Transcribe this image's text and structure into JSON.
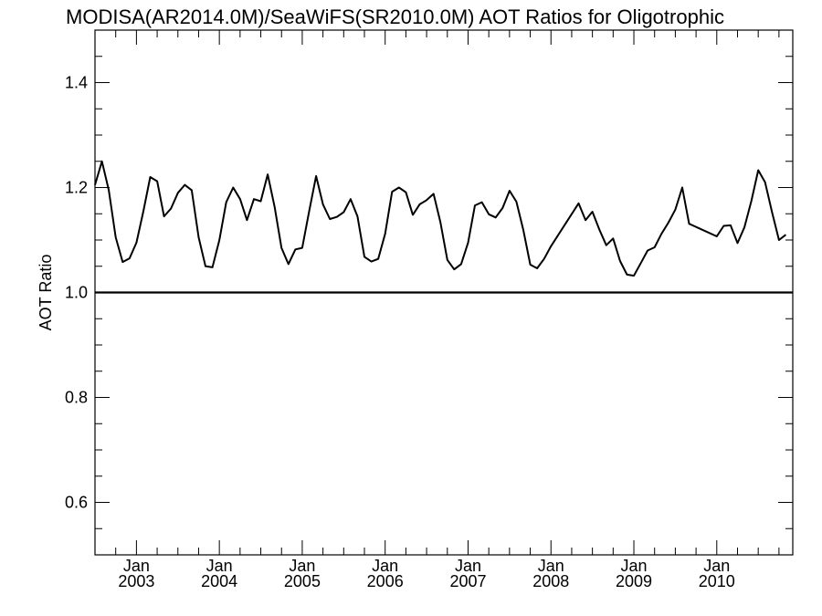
{
  "chart_data": {
    "type": "line",
    "title": "MODISA(AR2014.0M)/SeaWiFS(SR2010.0M)  AOT Ratios for Oligotrophic",
    "xlabel": "",
    "ylabel": "AOT Ratio",
    "ylim": [
      0.5,
      1.5
    ],
    "xlim": [
      "2002-07-01",
      "2010-12-01"
    ],
    "y_ticks": [
      {
        "value": 0.6,
        "label": "0.6"
      },
      {
        "value": 0.8,
        "label": "0.8"
      },
      {
        "value": 1.0,
        "label": "1.0"
      },
      {
        "value": 1.2,
        "label": "1.2"
      },
      {
        "value": 1.4,
        "label": "1.4"
      }
    ],
    "x_ticks": [
      {
        "date": "2003-01-01",
        "month": "Jan",
        "year": "2003"
      },
      {
        "date": "2004-01-01",
        "month": "Jan",
        "year": "2004"
      },
      {
        "date": "2005-01-01",
        "month": "Jan",
        "year": "2005"
      },
      {
        "date": "2006-01-01",
        "month": "Jan",
        "year": "2006"
      },
      {
        "date": "2007-01-01",
        "month": "Jan",
        "year": "2007"
      },
      {
        "date": "2008-01-01",
        "month": "Jan",
        "year": "2008"
      },
      {
        "date": "2009-01-01",
        "month": "Jan",
        "year": "2009"
      },
      {
        "date": "2010-01-01",
        "month": "Jan",
        "year": "2010"
      }
    ],
    "reference_line": {
      "y": 1.0
    },
    "grid": false,
    "series": [
      {
        "x": [
          "2002-07",
          "2002-08",
          "2002-09",
          "2002-10",
          "2002-11",
          "2002-12",
          "2003-01",
          "2003-02",
          "2003-03",
          "2003-04",
          "2003-05",
          "2003-06",
          "2003-07",
          "2003-08",
          "2003-09",
          "2003-10",
          "2003-11",
          "2003-12",
          "2004-01",
          "2004-02",
          "2004-03",
          "2004-04",
          "2004-05",
          "2004-06",
          "2004-07",
          "2004-08",
          "2004-09",
          "2004-10",
          "2004-11",
          "2004-12",
          "2005-01",
          "2005-02",
          "2005-03",
          "2005-04",
          "2005-05",
          "2005-06",
          "2005-07",
          "2005-08",
          "2005-09",
          "2005-10",
          "2005-11",
          "2005-12",
          "2006-01",
          "2006-02",
          "2006-03",
          "2006-04",
          "2006-05",
          "2006-06",
          "2006-07",
          "2006-08",
          "2006-09",
          "2006-10",
          "2006-11",
          "2006-12",
          "2007-01",
          "2007-02",
          "2007-03",
          "2007-04",
          "2007-05",
          "2007-06",
          "2007-07",
          "2007-08",
          "2007-09",
          "2007-10",
          "2007-11",
          "2007-12",
          "2008-01",
          "2008-05",
          "2008-06",
          "2008-07",
          "2008-08",
          "2008-09",
          "2008-10",
          "2008-11",
          "2008-12",
          "2009-01",
          "2009-02",
          "2009-03",
          "2009-04",
          "2009-05",
          "2009-06",
          "2009-07",
          "2009-08",
          "2009-09",
          "2010-01",
          "2010-02",
          "2010-03",
          "2010-04",
          "2010-05",
          "2010-06",
          "2010-07",
          "2010-08",
          "2010-09",
          "2010-10",
          "2010-11"
        ],
        "values": [
          1.205,
          1.25,
          1.195,
          1.105,
          1.058,
          1.065,
          1.095,
          1.155,
          1.22,
          1.212,
          1.145,
          1.16,
          1.19,
          1.205,
          1.195,
          1.105,
          1.05,
          1.048,
          1.1,
          1.172,
          1.2,
          1.178,
          1.138,
          1.178,
          1.174,
          1.225,
          1.163,
          1.085,
          1.054,
          1.082,
          1.085,
          1.155,
          1.222,
          1.168,
          1.14,
          1.144,
          1.153,
          1.178,
          1.145,
          1.068,
          1.059,
          1.064,
          1.112,
          1.192,
          1.2,
          1.191,
          1.148,
          1.168,
          1.176,
          1.188,
          1.134,
          1.062,
          1.044,
          1.054,
          1.095,
          1.166,
          1.172,
          1.149,
          1.143,
          1.161,
          1.194,
          1.173,
          1.119,
          1.053,
          1.046,
          1.064,
          1.088,
          1.17,
          1.138,
          1.154,
          1.12,
          1.09,
          1.103,
          1.06,
          1.034,
          1.032,
          1.056,
          1.08,
          1.086,
          1.112,
          1.133,
          1.158,
          1.2,
          1.131,
          1.107,
          1.127,
          1.128,
          1.094,
          1.124,
          1.174,
          1.233,
          1.21,
          1.153,
          1.1,
          1.11
        ]
      }
    ]
  }
}
